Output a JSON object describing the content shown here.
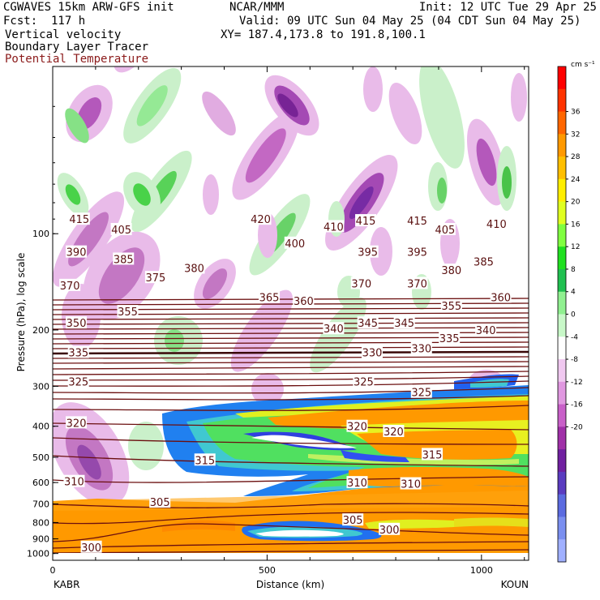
{
  "header": {
    "model": "CGWAVES 15km ARW-GFS init",
    "fcst": "Fcst:  117 h",
    "field1": "Vertical velocity",
    "field2": "Boundary Layer Tracer",
    "field3": "Potential Temperature",
    "org": "NCAR/MMM",
    "init": "Init: 12 UTC Tue 29 Apr 25",
    "valid": "Valid: 09 UTC Sun 04 May 25 (04 CDT Sun 04 May 25)",
    "xy": "XY= 187.4,173.8 to 191.8,100.1"
  },
  "colorbar": {
    "units": "cm s⁻¹",
    "labels": [
      "36",
      "32",
      "28",
      "24",
      "20",
      "16",
      "12",
      "8",
      "4",
      "0",
      "-4",
      "-8",
      "-12",
      "-16",
      "-20"
    ],
    "colors": [
      "#ff0000",
      "#ff3300",
      "#ff6600",
      "#ff9900",
      "#ffbf00",
      "#ffee00",
      "#e0ff20",
      "#80ff40",
      "#20e020",
      "#20c050",
      "#90f090",
      "#c8f8c8",
      "#ffffff",
      "#f0c8f0",
      "#e098e0",
      "#c860c8",
      "#a030a8",
      "#7020a0",
      "#5a3cc0",
      "#5b6be0",
      "#7a8ff0",
      "#a0b0ff"
    ],
    "accent_red": "#8b1a1a"
  },
  "chart_data": {
    "type": "heatmap",
    "title": "",
    "xlabel": "Distance (km)",
    "ylabel": "Pressure (hPa), log scale",
    "x_ticks": [
      "0",
      "500",
      "1000"
    ],
    "xlim": [
      0,
      1110
    ],
    "y_ticks": [
      "100",
      "200",
      "300",
      "400",
      "500",
      "600",
      "700",
      "800",
      "900",
      "1000"
    ],
    "ylim": [
      1050,
      30
    ],
    "y_scale": "log",
    "x_end_labels": {
      "left": "KABR",
      "right": "KOUN"
    },
    "theta_labels": [
      {
        "v": "415",
        "x": 62,
        "p": 90
      },
      {
        "v": "405",
        "x": 160,
        "p": 97
      },
      {
        "v": "420",
        "x": 485,
        "p": 90
      },
      {
        "v": "410",
        "x": 655,
        "p": 95
      },
      {
        "v": "415",
        "x": 730,
        "p": 91
      },
      {
        "v": "415",
        "x": 850,
        "p": 91
      },
      {
        "v": "405",
        "x": 915,
        "p": 97
      },
      {
        "v": "410",
        "x": 1035,
        "p": 93
      },
      {
        "v": "390",
        "x": 55,
        "p": 114
      },
      {
        "v": "385",
        "x": 165,
        "p": 120
      },
      {
        "v": "400",
        "x": 565,
        "p": 107
      },
      {
        "v": "395",
        "x": 735,
        "p": 114
      },
      {
        "v": "395",
        "x": 850,
        "p": 114
      },
      {
        "v": "385",
        "x": 1005,
        "p": 122
      },
      {
        "v": "380",
        "x": 330,
        "p": 128
      },
      {
        "v": "375",
        "x": 240,
        "p": 137
      },
      {
        "v": "380",
        "x": 930,
        "p": 130
      },
      {
        "v": "370",
        "x": 40,
        "p": 145
      },
      {
        "v": "370",
        "x": 720,
        "p": 143
      },
      {
        "v": "370",
        "x": 850,
        "p": 143
      },
      {
        "v": "365",
        "x": 505,
        "p": 158
      },
      {
        "v": "360",
        "x": 585,
        "p": 162
      },
      {
        "v": "355",
        "x": 175,
        "p": 175
      },
      {
        "v": "355",
        "x": 930,
        "p": 168
      },
      {
        "v": "360",
        "x": 1045,
        "p": 158
      },
      {
        "v": "350",
        "x": 55,
        "p": 190
      },
      {
        "v": "340",
        "x": 655,
        "p": 198
      },
      {
        "v": "345",
        "x": 735,
        "p": 190
      },
      {
        "v": "345",
        "x": 820,
        "p": 190
      },
      {
        "v": "340",
        "x": 1010,
        "p": 200
      },
      {
        "v": "335",
        "x": 60,
        "p": 235
      },
      {
        "v": "330",
        "x": 745,
        "p": 235
      },
      {
        "v": "330",
        "x": 860,
        "p": 228
      },
      {
        "v": "335",
        "x": 925,
        "p": 212
      },
      {
        "v": "325",
        "x": 60,
        "p": 290
      },
      {
        "v": "325",
        "x": 725,
        "p": 290
      },
      {
        "v": "325",
        "x": 860,
        "p": 313
      },
      {
        "v": "320",
        "x": 55,
        "p": 390
      },
      {
        "v": "320",
        "x": 710,
        "p": 400
      },
      {
        "v": "320",
        "x": 795,
        "p": 415
      },
      {
        "v": "315",
        "x": 355,
        "p": 510
      },
      {
        "v": "315",
        "x": 885,
        "p": 490
      },
      {
        "v": "310",
        "x": 50,
        "p": 595
      },
      {
        "v": "310",
        "x": 710,
        "p": 600
      },
      {
        "v": "310",
        "x": 835,
        "p": 605
      },
      {
        "v": "305",
        "x": 250,
        "p": 690
      },
      {
        "v": "305",
        "x": 700,
        "p": 785
      },
      {
        "v": "300",
        "x": 785,
        "p": 840
      },
      {
        "v": "300",
        "x": 90,
        "p": 955
      }
    ]
  }
}
